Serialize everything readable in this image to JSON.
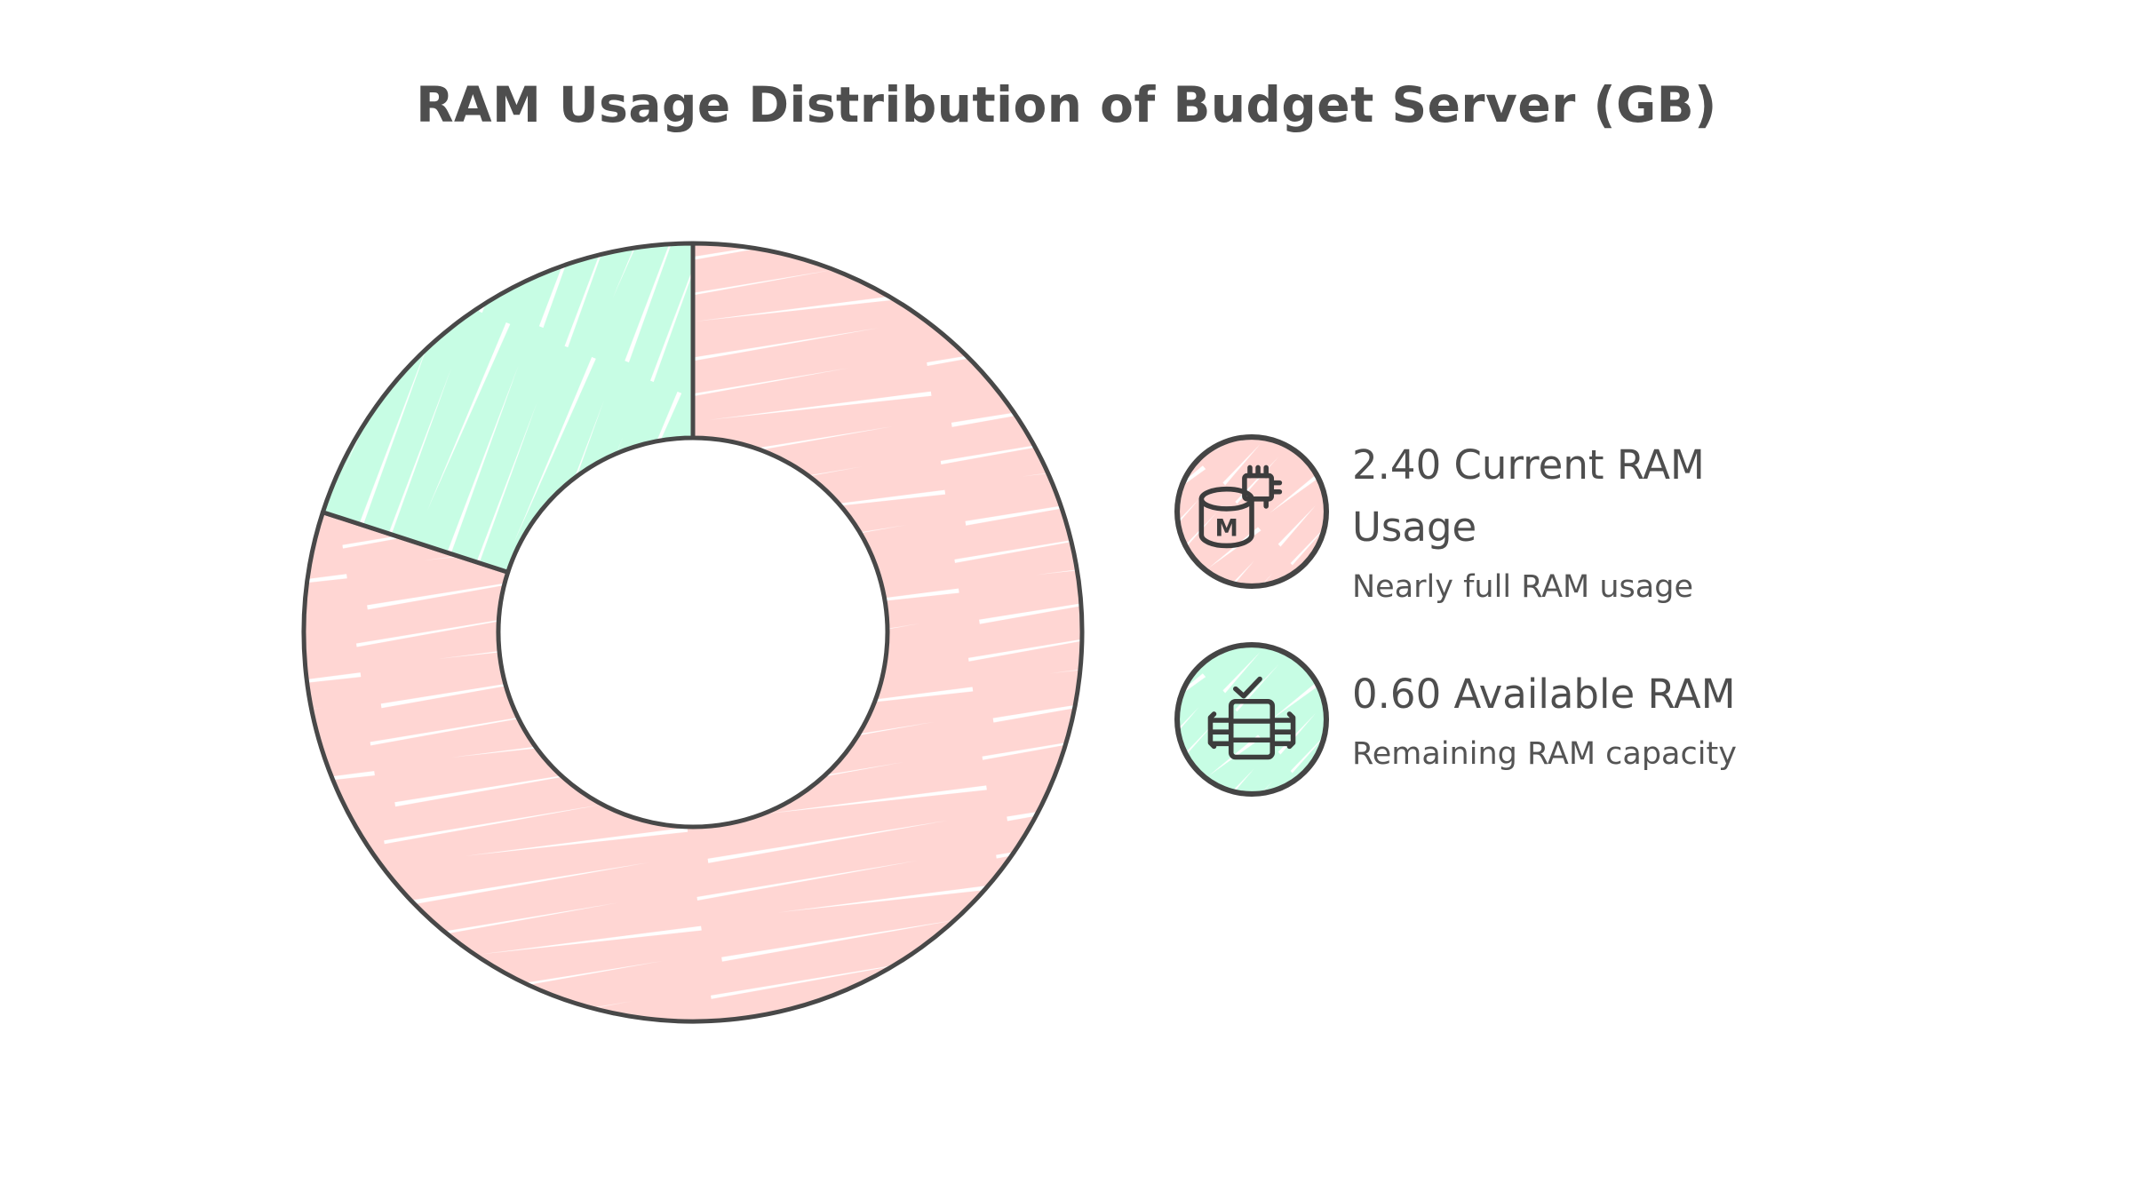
{
  "title": "RAM Usage Distribution of Budget Server (GB)",
  "chart_data": {
    "type": "pie",
    "variant": "donut",
    "title": "RAM Usage Distribution of Budget Server (GB)",
    "unit": "GB",
    "total": 3.0,
    "categories": [
      "Current RAM Usage",
      "Available RAM"
    ],
    "values": [
      2.4,
      0.6
    ],
    "display_values": [
      "2.40",
      "0.60"
    ],
    "percentages": [
      80,
      20
    ],
    "colors": [
      "#ffd6d3",
      "#c7fde4"
    ],
    "outline_color": "#484848",
    "start_angle_deg": 0,
    "direction": "clockwise",
    "donut_hole_ratio": 0.5,
    "legend_position": "right",
    "background": "#ffffff",
    "style": "hand-drawn-sketch"
  },
  "legend": {
    "items": [
      {
        "label": "2.40 Current RAM Usage",
        "sublabel": "Nearly full RAM usage",
        "value": "2.40",
        "color": "#ffd6d3",
        "icon": "memory-database-icon",
        "icon_letter": "M"
      },
      {
        "label": "0.60 Available RAM",
        "sublabel": "Remaining RAM capacity",
        "value": "0.60",
        "color": "#c7fde4",
        "icon": "ram-module-check-icon"
      }
    ]
  }
}
